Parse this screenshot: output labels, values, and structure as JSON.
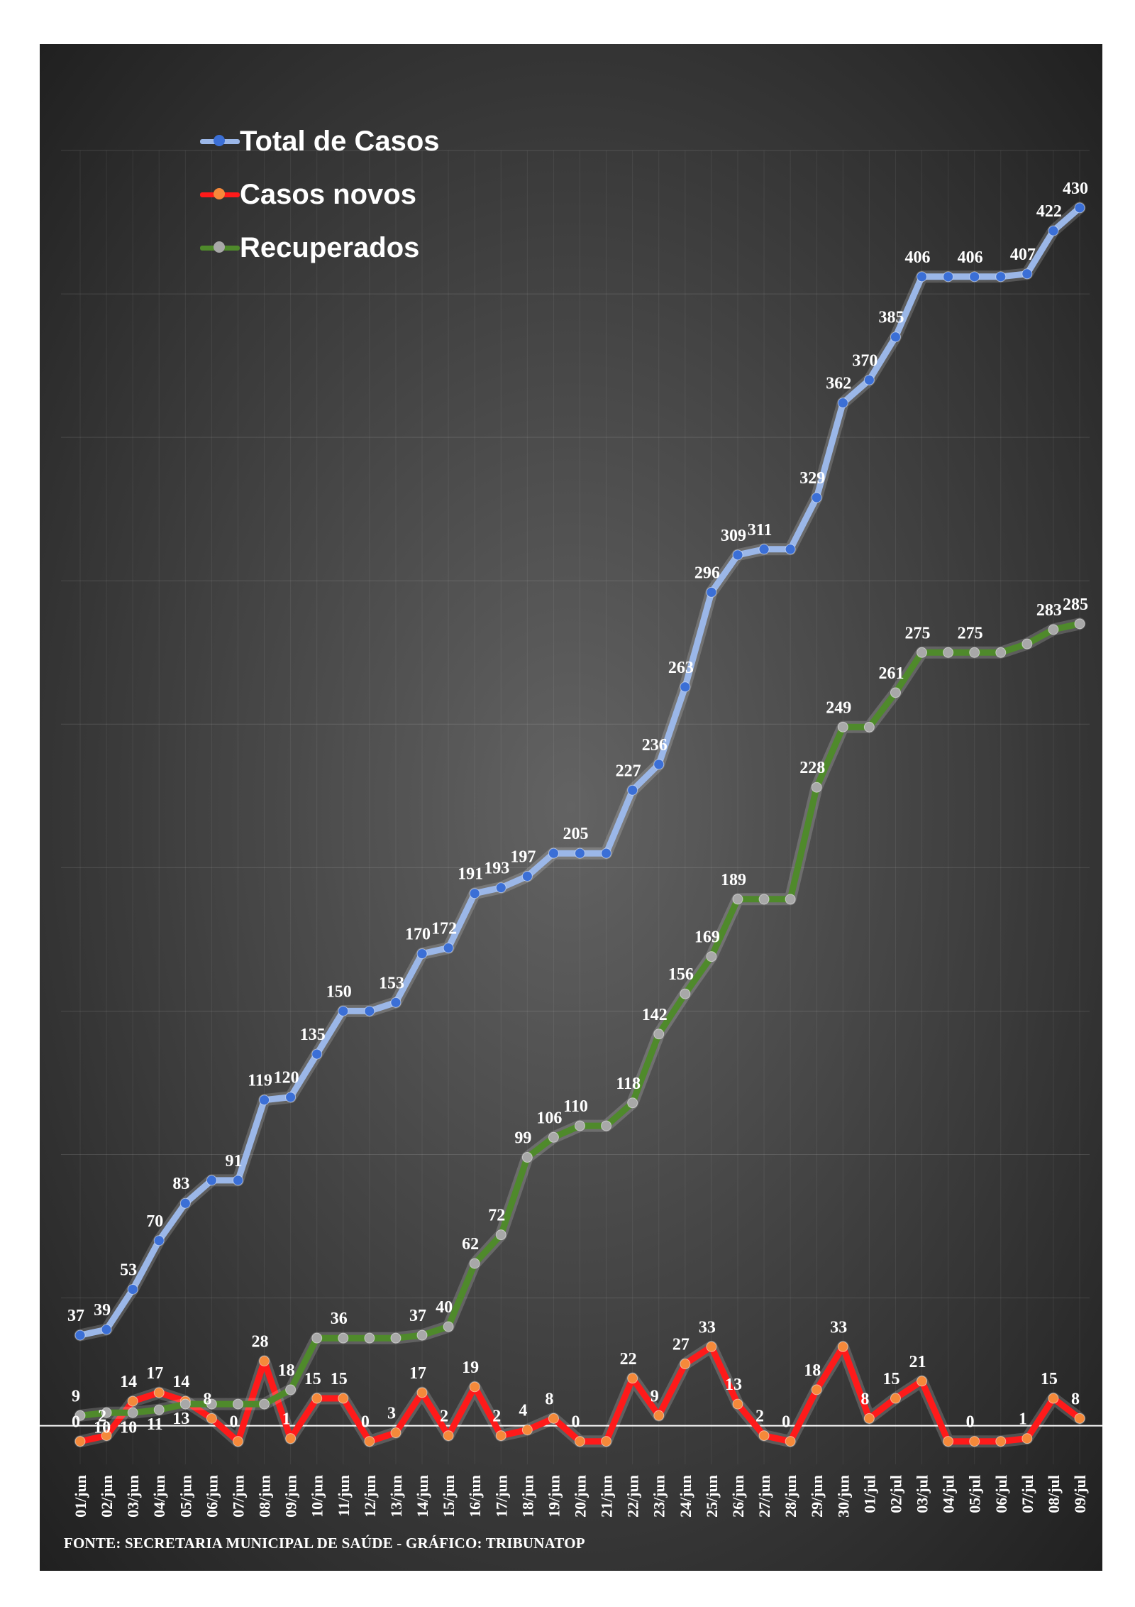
{
  "chart_data": {
    "type": "line",
    "categories": [
      "01/jun",
      "02/jun",
      "03/jun",
      "04/jun",
      "05/jun",
      "06/jun",
      "07/jun",
      "08/jun",
      "09/jun",
      "10/jun",
      "11/jun",
      "12/jun",
      "13/jun",
      "14/jun",
      "15/jun",
      "16/jun",
      "17/jun",
      "18/jun",
      "19/jun",
      "20/jun",
      "21/jun",
      "22/jun",
      "23/jun",
      "24/jun",
      "25/jun",
      "26/jun",
      "27/jun",
      "28/jun",
      "29/jun",
      "30/jun",
      "01/jul",
      "02/jul",
      "03/jul",
      "04/jul",
      "05/jul",
      "06/jul",
      "07/jul",
      "08/jul",
      "09/jul"
    ],
    "series": [
      {
        "name": "Total de Casos",
        "color": "#9bb7e8",
        "marker_color": "#3b6fd6",
        "values": [
          37,
          39,
          53,
          70,
          83,
          91,
          91,
          119,
          120,
          135,
          150,
          150,
          153,
          170,
          172,
          191,
          193,
          197,
          205,
          205,
          205,
          227,
          236,
          263,
          296,
          309,
          311,
          311,
          329,
          362,
          370,
          385,
          406,
          406,
          406,
          406,
          407,
          422,
          430
        ],
        "labels": [
          "37",
          "39",
          "53",
          "70",
          "83",
          "",
          "91",
          "119",
          "120",
          "135",
          "150",
          "",
          "153",
          "170",
          "172",
          "191",
          "193",
          "197",
          "",
          "205",
          "",
          "227",
          "236",
          "263",
          "296",
          "309",
          "311",
          "",
          "329",
          "362",
          "370",
          "385",
          "406",
          "",
          "406",
          "",
          "407",
          "422",
          "430"
        ]
      },
      {
        "name": "Casos novos",
        "color": "#ff1a1a",
        "marker_color": "#f5893a",
        "values": [
          0,
          2,
          14,
          17,
          14,
          8,
          0,
          28,
          1,
          15,
          15,
          0,
          3,
          17,
          2,
          19,
          2,
          4,
          8,
          0,
          0,
          22,
          9,
          27,
          33,
          13,
          2,
          0,
          18,
          33,
          8,
          15,
          21,
          0,
          0,
          0,
          1,
          15,
          8
        ],
        "labels": [
          "0",
          "2",
          "14",
          "17",
          "14",
          "8",
          "0",
          "28",
          "1",
          "15",
          "15",
          "0",
          "3",
          "17",
          "2",
          "19",
          "2",
          "4",
          "8",
          "0",
          "",
          "22",
          "9",
          "27",
          "33",
          "13",
          "2",
          "0",
          "18",
          "33",
          "8",
          "15",
          "21",
          "",
          "0",
          "",
          "1",
          "15",
          "8"
        ]
      },
      {
        "name": "Recuperados",
        "color": "#4f8a2b",
        "marker_color": "#a8a8a8",
        "values": [
          9,
          10,
          10,
          11,
          13,
          13,
          13,
          13,
          18,
          36,
          36,
          36,
          36,
          37,
          40,
          62,
          72,
          99,
          106,
          110,
          110,
          118,
          142,
          156,
          169,
          189,
          189,
          189,
          228,
          249,
          249,
          261,
          275,
          275,
          275,
          275,
          278,
          283,
          285
        ],
        "labels": [
          "9",
          "10",
          "10",
          "11",
          "13",
          "",
          "",
          "",
          "18",
          "",
          "36",
          "",
          "",
          "37",
          "40",
          "62",
          "72",
          "99",
          "106",
          "110",
          "",
          "118",
          "142",
          "156",
          "169",
          "189",
          "",
          "",
          "228",
          "249",
          "",
          "261",
          "275",
          "",
          "275",
          "",
          "",
          "283",
          "285"
        ]
      }
    ],
    "ylim": [
      -8,
      450
    ],
    "grid": true,
    "legend_position": "top-left",
    "source": "FONTE: SECRETARIA MUNICIPAL DE SAÚDE - GRÁFICO: TRIBUNATOP"
  }
}
